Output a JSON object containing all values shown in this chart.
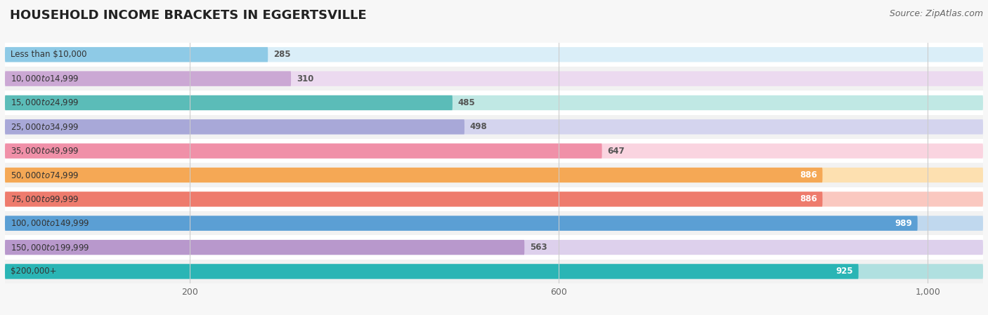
{
  "title": "HOUSEHOLD INCOME BRACKETS IN EGGERTSVILLE",
  "source": "Source: ZipAtlas.com",
  "categories": [
    "Less than $10,000",
    "$10,000 to $14,999",
    "$15,000 to $24,999",
    "$25,000 to $34,999",
    "$35,000 to $49,999",
    "$50,000 to $74,999",
    "$75,000 to $99,999",
    "$100,000 to $149,999",
    "$150,000 to $199,999",
    "$200,000+"
  ],
  "values": [
    285,
    310,
    485,
    498,
    647,
    886,
    886,
    989,
    563,
    925
  ],
  "bar_colors": [
    "#8ecae6",
    "#cba8d4",
    "#5bbcb8",
    "#a8a8d8",
    "#f090a8",
    "#f5a855",
    "#ee7b6d",
    "#5b9fd4",
    "#b898cc",
    "#2ab5b5"
  ],
  "bg_colors": [
    "#daeef8",
    "#ecdaf0",
    "#c0e8e4",
    "#d4d4ee",
    "#fad4e0",
    "#fde0b0",
    "#fac8c0",
    "#c0d8ee",
    "#ddd0ec",
    "#b0e0e0"
  ],
  "row_bg_colors": [
    "#ffffff",
    "#f2f2f2"
  ],
  "value_color_white": [
    false,
    false,
    false,
    false,
    false,
    true,
    true,
    true,
    false,
    true
  ],
  "xlim": [
    0,
    1060
  ],
  "xticks": [
    200,
    600,
    1000
  ],
  "xtick_labels": [
    "200",
    "600",
    "1,000"
  ],
  "background_color": "#f7f7f7",
  "title_fontsize": 13,
  "source_fontsize": 9,
  "bar_label_fontsize": 8.5,
  "value_fontsize": 8.5
}
